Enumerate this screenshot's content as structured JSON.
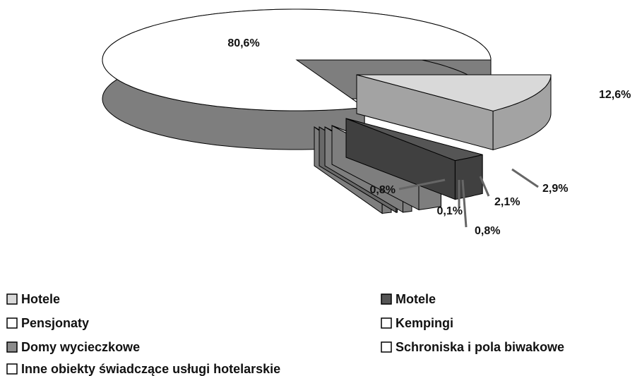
{
  "chart_data": {
    "type": "pie3d",
    "series": [
      {
        "name": "Hotele",
        "color": "#d9d9d9",
        "values": [
          12.6
        ],
        "value_labels": [
          "12,6%"
        ]
      },
      {
        "name": "Motele",
        "color": "#555555",
        "values": [
          2.9
        ],
        "value_labels": [
          "2,9%"
        ]
      },
      {
        "name": "Pensjonaty",
        "color": "#ffffff",
        "values": [
          2.1
        ],
        "value_labels": [
          "2,1%"
        ]
      },
      {
        "name": "Kempingi",
        "color": "#ffffff",
        "values": [
          0.8
        ],
        "value_labels": [
          "0,8%"
        ]
      },
      {
        "name": "Domy wycieczkowe",
        "color": "#8c8c8c",
        "values": [
          0.1
        ],
        "value_labels": [
          "0,1%"
        ]
      },
      {
        "name": "Schroniska i pola biwakowe",
        "color": "#ffffff",
        "values": [
          0.8
        ],
        "value_labels": [
          "0,8%"
        ]
      },
      {
        "name": "Inne obiekty świadczące usługi hotelarskie",
        "color": "#ffffff",
        "values": [
          80.6
        ],
        "value_labels": [
          "80,6%"
        ]
      }
    ]
  }
}
